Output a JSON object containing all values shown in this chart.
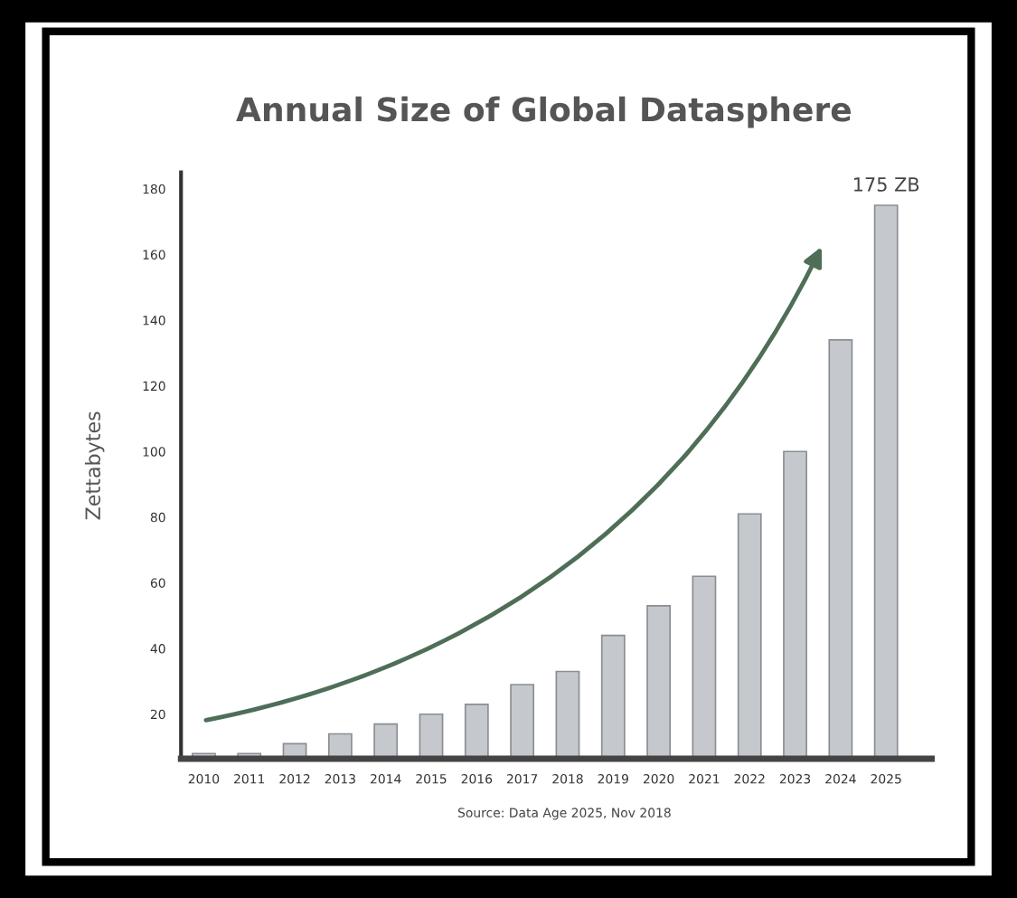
{
  "chart_data": {
    "type": "bar",
    "title": "Annual Size of Global Datasphere",
    "ylabel": "Zettabytes",
    "categories": [
      "2010",
      "2011",
      "2012",
      "2013",
      "2014",
      "2015",
      "2016",
      "2017",
      "2018",
      "2019",
      "2020",
      "2021",
      "2022",
      "2023",
      "2024",
      "2025"
    ],
    "values": [
      8,
      8,
      11,
      14,
      17,
      20,
      23,
      29,
      33,
      44,
      53,
      62,
      81,
      100,
      134,
      175
    ],
    "value_labels": [
      null,
      null,
      null,
      null,
      null,
      null,
      null,
      null,
      null,
      null,
      null,
      null,
      null,
      null,
      null,
      "175 ZB"
    ],
    "color": "#c5c9ce",
    "ylim": [
      6.4,
      185
    ],
    "yticks": [
      20,
      40,
      60,
      80,
      100,
      120,
      140,
      160,
      180
    ],
    "grid": false,
    "annotations": [
      "Source: Data Age 2025, Nov 2018"
    ]
  }
}
